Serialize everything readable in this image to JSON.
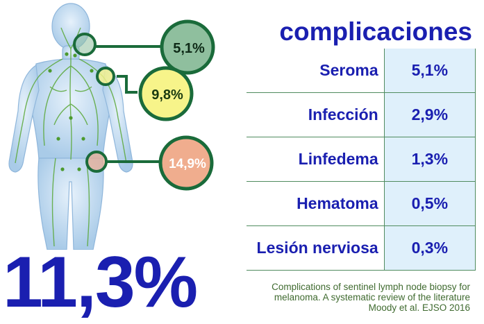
{
  "bubbles": [
    {
      "label": "5,1%",
      "fill": "#8fbf9e",
      "text_color": "#0e2a17"
    },
    {
      "label": "9,8%",
      "fill": "#f7f48a",
      "text_color": "#1a3a10"
    },
    {
      "label": "14,9%",
      "fill": "#f0ad8e",
      "text_color": "#ffffff"
    }
  ],
  "big_stat": "11,3%",
  "title": "complicaciones",
  "table": {
    "rows": [
      {
        "label": "Seroma",
        "value": "5,1%"
      },
      {
        "label": "Infección",
        "value": "2,9%"
      },
      {
        "label": "Linfedema",
        "value": "1,3%"
      },
      {
        "label": "Hematoma",
        "value": "0,5%"
      },
      {
        "label": "Lesión nerviosa",
        "value": "0,3%"
      }
    ]
  },
  "citation": "Complications of sentinel lymph node biopsy for melanoma. A systematic review of the literature Moody et al. EJSO 2016",
  "colors": {
    "primary_blue": "#1a1fb0",
    "dark_green": "#1a6b3a",
    "table_border": "#4f8b5e",
    "value_cell_bg": "#dff0fb",
    "body_blue": "#a9cbe8",
    "lymph_green": "#5aa838"
  }
}
